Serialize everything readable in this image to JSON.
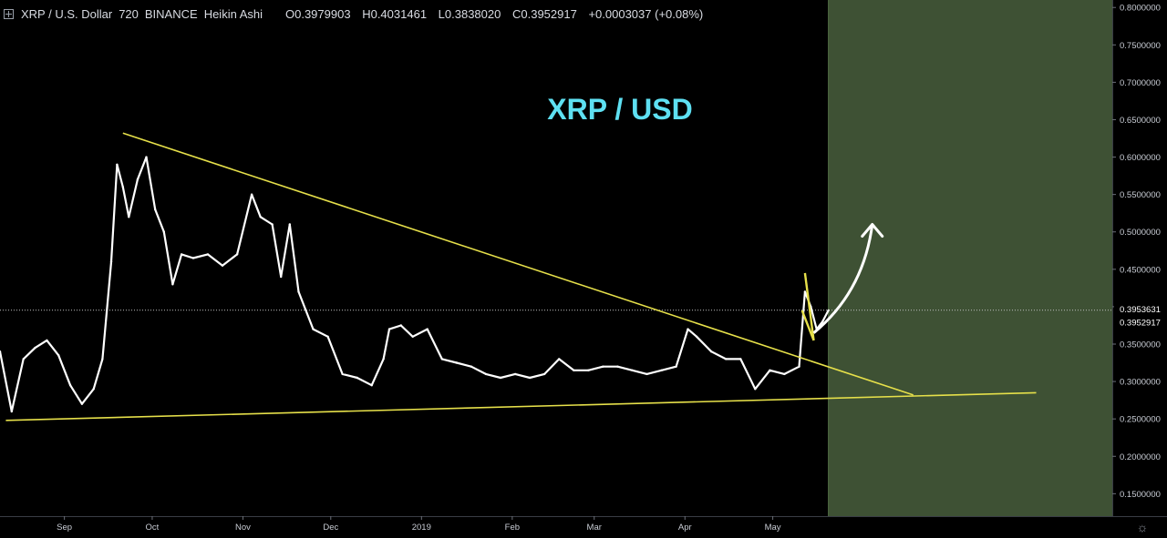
{
  "header": {
    "symbol": "XRP / U.S. Dollar",
    "interval": "720",
    "exchange": "BINANCE",
    "style": "Heikin Ashi",
    "open": "O0.3979903",
    "high": "H0.4031461",
    "low": "L0.3838020",
    "close": "C0.3952917",
    "change": "+0.0003037 (+0.08%)"
  },
  "chart_data": {
    "type": "line",
    "title": "XRP / USD",
    "xlabel": "",
    "ylabel": "",
    "ylim": [
      0.12,
      0.81
    ],
    "grid": false,
    "x_ticks": [
      "Sep",
      "Oct",
      "Nov",
      "Dec",
      "2019",
      "Feb",
      "Mar",
      "Apr",
      "May"
    ],
    "y_ticks": [
      "0.8000000",
      "0.7500000",
      "0.7000000",
      "0.6500000",
      "0.6000000",
      "0.5500000",
      "0.5000000",
      "0.4500000",
      "0.4000000",
      "0.3500000",
      "0.3000000",
      "0.2500000",
      "0.2000000",
      "0.1500000"
    ],
    "price_labels": [
      {
        "value": 0.3953631,
        "label": "0.3953631"
      },
      {
        "value": 0.3952917,
        "label": "0.3952917"
      }
    ],
    "series": [
      {
        "x": [
          "2018-08-10",
          "2018-08-14",
          "2018-08-18",
          "2018-08-22",
          "2018-08-26",
          "2018-08-30",
          "2018-09-03",
          "2018-09-07",
          "2018-09-11",
          "2018-09-14",
          "2018-09-17",
          "2018-09-19",
          "2018-09-21",
          "2018-09-23",
          "2018-09-26",
          "2018-09-29",
          "2018-10-02",
          "2018-10-05",
          "2018-10-08",
          "2018-10-11",
          "2018-10-15",
          "2018-10-20",
          "2018-10-25",
          "2018-10-30",
          "2018-11-04",
          "2018-11-07",
          "2018-11-11",
          "2018-11-14",
          "2018-11-17",
          "2018-11-20",
          "2018-11-25",
          "2018-11-30",
          "2018-12-05",
          "2018-12-10",
          "2018-12-15",
          "2018-12-19",
          "2018-12-21",
          "2018-12-25",
          "2018-12-29",
          "2019-01-03",
          "2019-01-08",
          "2019-01-13",
          "2019-01-18",
          "2019-01-23",
          "2019-01-28",
          "2019-02-02",
          "2019-02-07",
          "2019-02-12",
          "2019-02-17",
          "2019-02-22",
          "2019-02-27",
          "2019-03-04",
          "2019-03-09",
          "2019-03-14",
          "2019-03-19",
          "2019-03-24",
          "2019-03-29",
          "2019-04-02",
          "2019-04-05",
          "2019-04-10",
          "2019-04-15",
          "2019-04-20",
          "2019-04-25",
          "2019-04-30",
          "2019-05-05",
          "2019-05-10",
          "2019-05-12",
          "2019-05-14",
          "2019-05-16",
          "2019-05-18",
          "2019-05-20"
        ],
        "values": [
          0.34,
          0.26,
          0.33,
          0.345,
          0.355,
          0.335,
          0.295,
          0.27,
          0.29,
          0.33,
          0.46,
          0.59,
          0.56,
          0.52,
          0.57,
          0.6,
          0.53,
          0.5,
          0.43,
          0.47,
          0.465,
          0.47,
          0.455,
          0.47,
          0.55,
          0.52,
          0.51,
          0.44,
          0.51,
          0.42,
          0.37,
          0.36,
          0.31,
          0.305,
          0.295,
          0.33,
          0.37,
          0.375,
          0.36,
          0.37,
          0.33,
          0.325,
          0.32,
          0.31,
          0.305,
          0.31,
          0.305,
          0.31,
          0.33,
          0.315,
          0.315,
          0.32,
          0.32,
          0.315,
          0.31,
          0.315,
          0.32,
          0.37,
          0.36,
          0.34,
          0.33,
          0.33,
          0.29,
          0.315,
          0.31,
          0.32,
          0.42,
          0.4,
          0.37,
          0.38,
          0.395
        ]
      }
    ],
    "annotations": {
      "resistance_trendline": [
        {
          "x": "2018-09-21",
          "y": 0.632
        },
        {
          "x": "2019-06-18",
          "y": 0.282
        }
      ],
      "support_trendline": [
        {
          "x": "2018-08-12",
          "y": 0.248
        },
        {
          "x": "2019-07-30",
          "y": 0.285
        }
      ],
      "flag_lines": [
        [
          {
            "x": "2019-05-12",
            "y": 0.445
          },
          {
            "x": "2019-05-15",
            "y": 0.355
          }
        ],
        [
          {
            "x": "2019-05-11",
            "y": 0.395
          },
          {
            "x": "2019-05-15",
            "y": 0.355
          }
        ]
      ],
      "arrow": [
        {
          "x": "2019-05-15",
          "y": 0.365
        },
        {
          "x": "2019-06-01",
          "y": 0.42
        },
        {
          "x": "2019-06-04",
          "y": 0.51
        }
      ],
      "projection_zone_start": "2019-05-20"
    }
  }
}
